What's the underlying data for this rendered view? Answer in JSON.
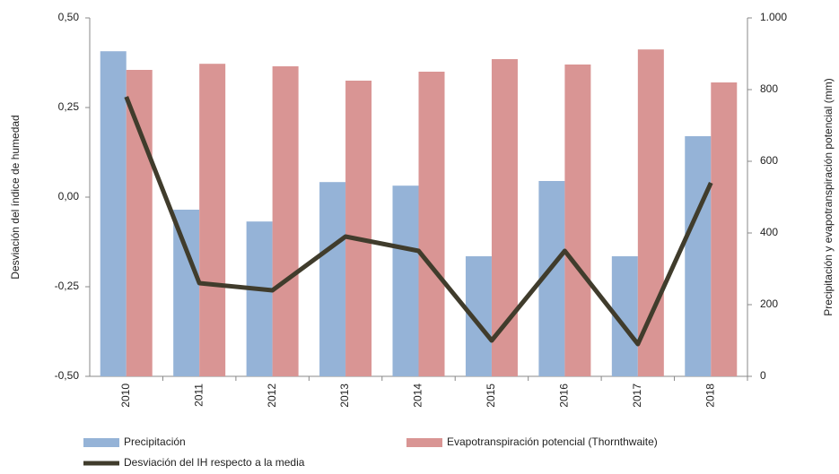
{
  "chart_data": {
    "type": "bar",
    "y_label": "Desviación del índice de humedad",
    "y2_label": "Precipitación y evapotranspiración potencial (mm)",
    "categories": [
      "2010",
      "2011",
      "2012",
      "2013",
      "2014",
      "2015",
      "2016",
      "2017",
      "2018"
    ],
    "series": [
      {
        "name": "Precipitación",
        "color": "#95b3d7",
        "type": "bar",
        "axis": "y2",
        "values": [
          907,
          465,
          432,
          542,
          532,
          335,
          545,
          335,
          670
        ]
      },
      {
        "name": "Evapotranspiración potencial (Thornthwaite)",
        "color": "#d99594",
        "type": "bar",
        "axis": "y2",
        "values": [
          855,
          872,
          865,
          825,
          850,
          885,
          870,
          912,
          820
        ]
      },
      {
        "name": "Desviación del IH respecto a la media",
        "color": "#403c2c",
        "type": "line",
        "axis": "y",
        "values": [
          0.28,
          -0.24,
          -0.26,
          -0.11,
          -0.15,
          -0.4,
          -0.15,
          -0.41,
          0.04
        ]
      }
    ],
    "ylim": [
      -0.5,
      0.5
    ],
    "yticks": [
      {
        "value": -0.5,
        "label": "-0,50"
      },
      {
        "value": -0.25,
        "label": "-0,25"
      },
      {
        "value": 0,
        "label": "0,00"
      },
      {
        "value": 0.25,
        "label": "0,25"
      },
      {
        "value": 0.5,
        "label": "0,50"
      }
    ],
    "y2lim": [
      0,
      1000
    ],
    "y2ticks": [
      0,
      200,
      400,
      600,
      800,
      {
        "value": 1000,
        "label": "1.000"
      }
    ],
    "legend": "bottom"
  }
}
